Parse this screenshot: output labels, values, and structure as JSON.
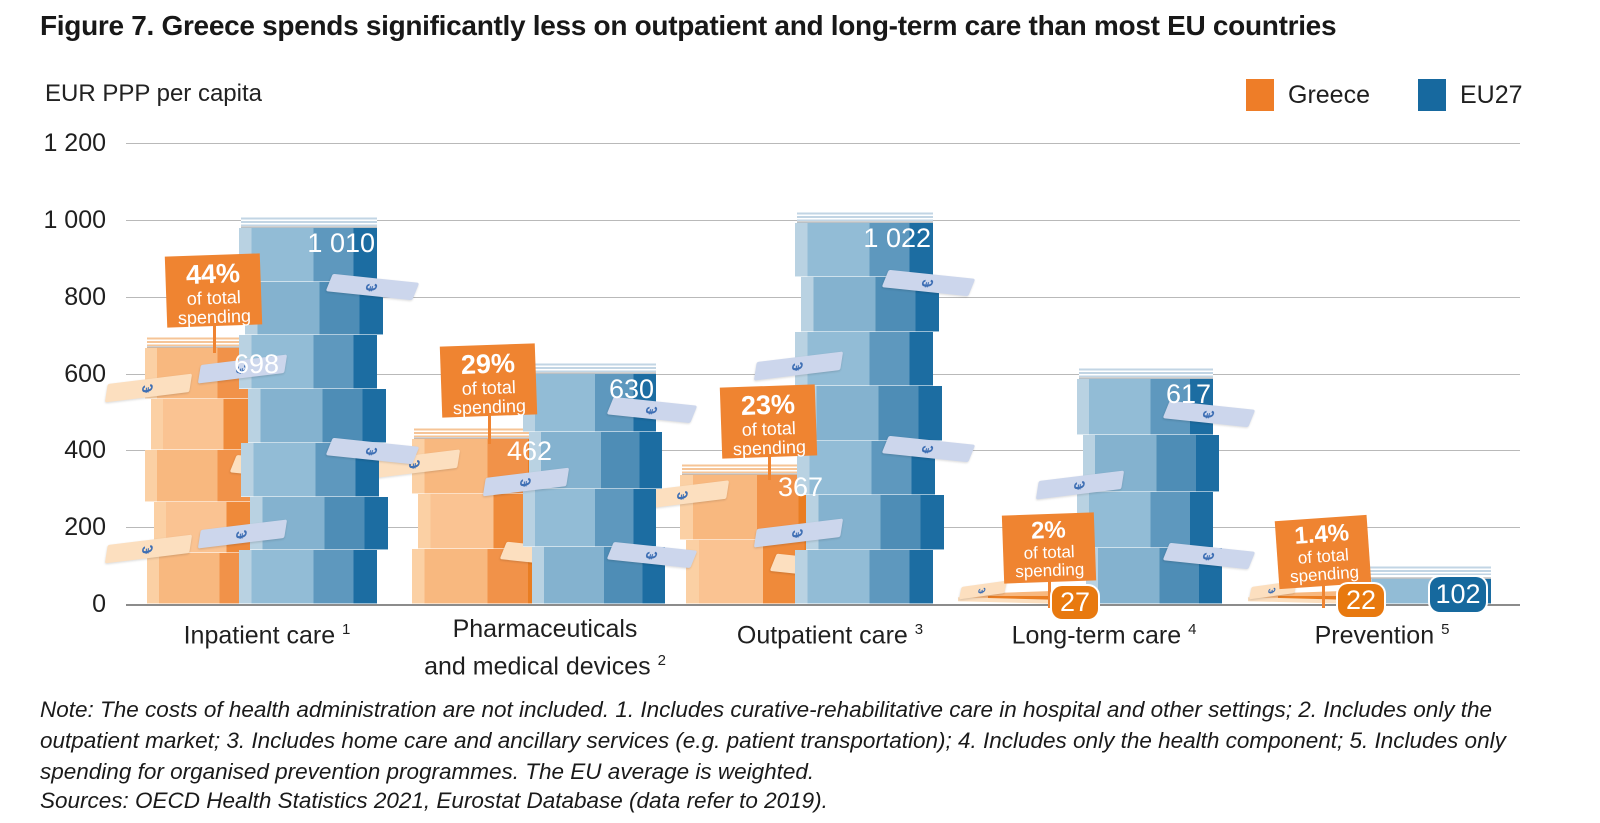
{
  "figure": {
    "title": "Figure 7. Greece spends significantly less on outpatient and long-term care than most EU countries",
    "unit_label": "EUR PPP per capita",
    "note": "Note: The costs of health administration are not included. 1. Includes curative-rehabilitative care in hospital and other settings; 2. Includes only the outpatient market; 3. Includes home care and ancillary services (e.g. patient transportation); 4. Includes only the health component; 5. Includes only spending for organised prevention programmes. The EU average is weighted.",
    "sources": "Sources: OECD Health Statistics 2021, Eurostat Database (data refer to 2019)."
  },
  "legend": {
    "items": [
      {
        "label": "Greece",
        "color": "#ee7d28"
      },
      {
        "label": "EU27",
        "color": "#17699f"
      }
    ]
  },
  "chart_data": {
    "type": "bar",
    "title": "Figure 7. Greece spends significantly less on outpatient and long-term care than most EU countries",
    "xlabel": "",
    "ylabel": "EUR PPP per capita",
    "ylim": [
      0,
      1200
    ],
    "grid": true,
    "legend_position": "top-right",
    "yticks": [
      {
        "value": 0,
        "label": "0"
      },
      {
        "value": 200,
        "label": "200"
      },
      {
        "value": 400,
        "label": "400"
      },
      {
        "value": 600,
        "label": "600"
      },
      {
        "value": 800,
        "label": "800"
      },
      {
        "value": 1000,
        "label": "1 000"
      },
      {
        "value": 1200,
        "label": "1 200"
      }
    ],
    "categories": [
      {
        "lines": [
          "Inpatient care"
        ],
        "footnote": "1"
      },
      {
        "lines": [
          "Pharmaceuticals",
          "and medical devices"
        ],
        "footnote": "2"
      },
      {
        "lines": [
          "Outpatient care"
        ],
        "footnote": "3"
      },
      {
        "lines": [
          "Long-term care"
        ],
        "footnote": "4"
      },
      {
        "lines": [
          "Prevention"
        ],
        "footnote": "5"
      }
    ],
    "series": [
      {
        "name": "Greece",
        "color": "#ee7d28",
        "values": [
          698,
          462,
          367,
          27,
          22
        ],
        "value_labels": [
          "698",
          "462",
          "367",
          "27",
          "22"
        ]
      },
      {
        "name": "EU27",
        "color": "#17699f",
        "values": [
          1010,
          630,
          1022,
          617,
          102
        ],
        "value_labels": [
          "1 010",
          "630",
          "1 022",
          "617",
          "102"
        ]
      }
    ],
    "greece_share_callouts": {
      "percents": [
        "44%",
        "29%",
        "23%",
        "2%",
        "1.4%"
      ],
      "caption_lines": [
        "of total",
        "spending"
      ]
    }
  }
}
